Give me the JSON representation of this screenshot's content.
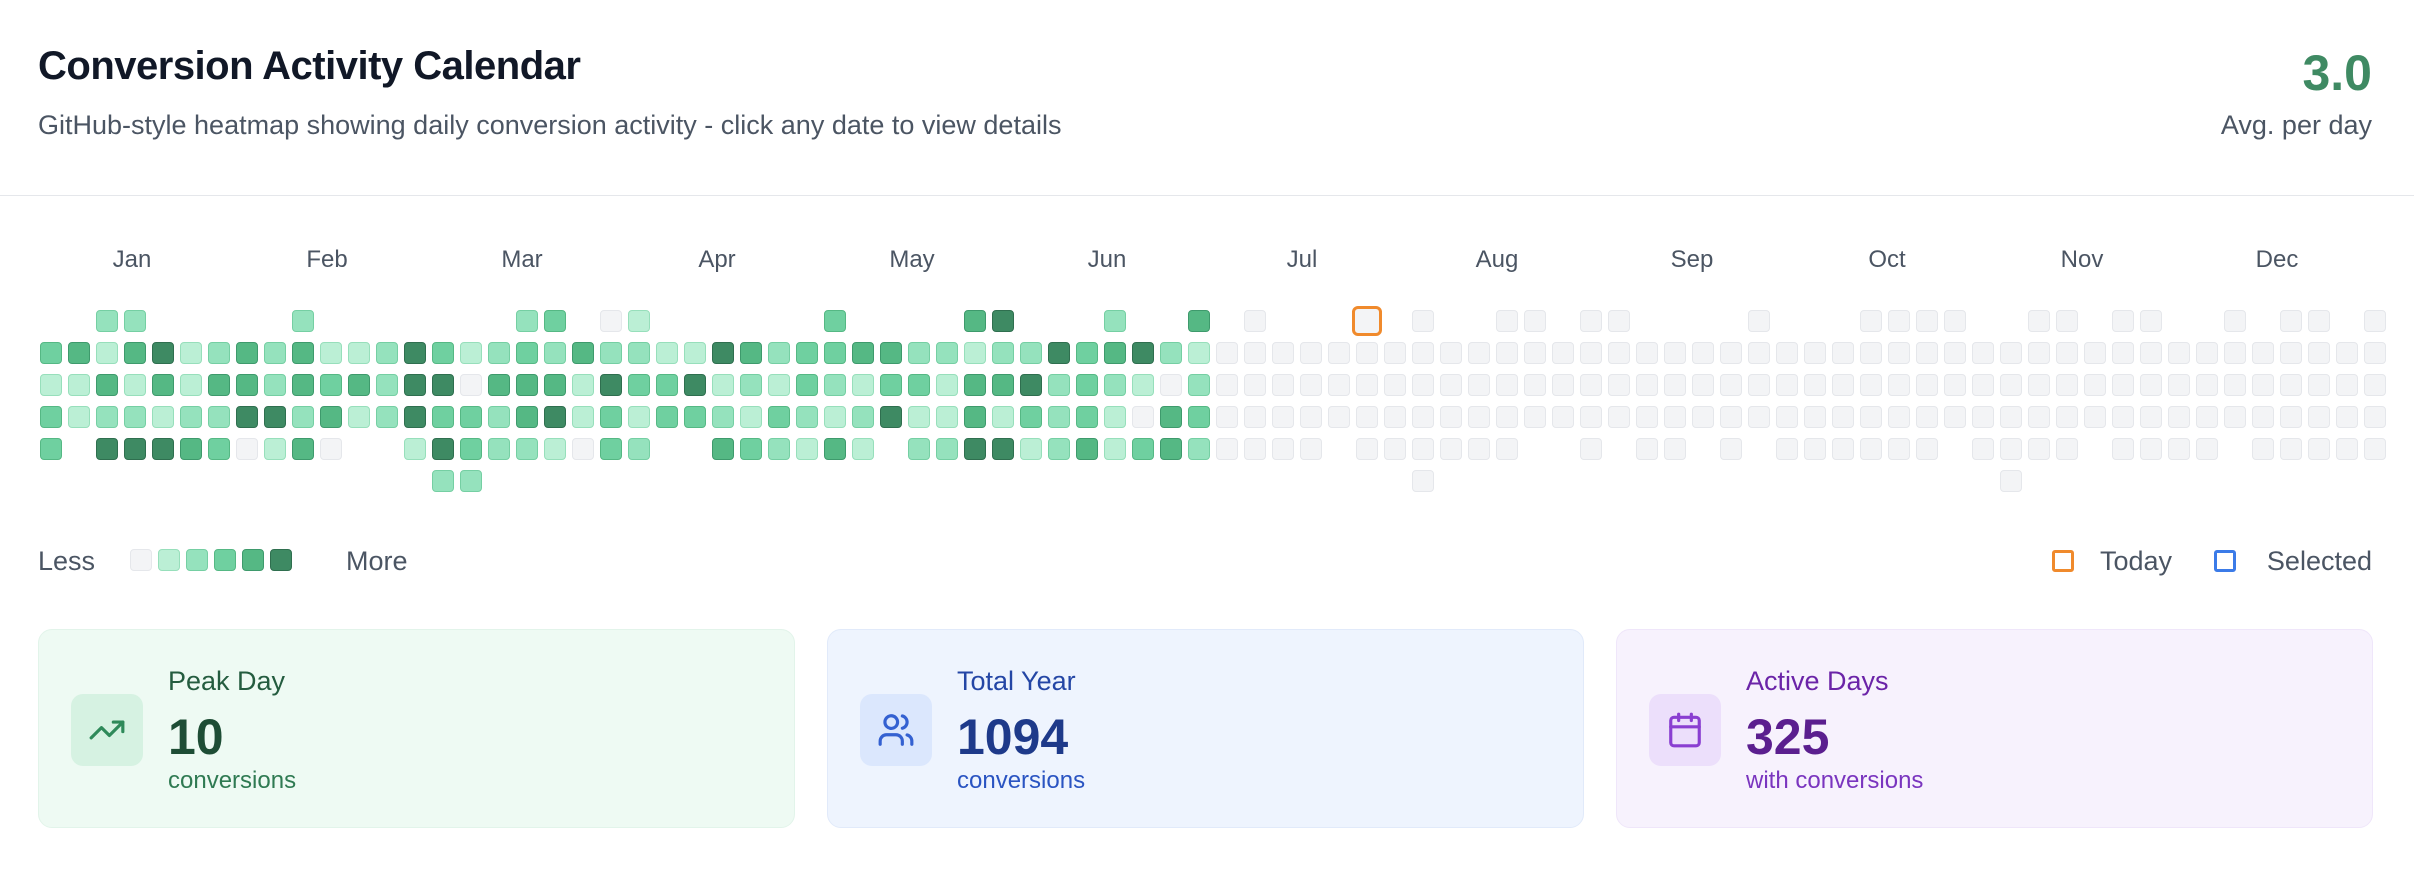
{
  "header": {
    "title": "Conversion Activity Calendar",
    "subtitle": "GitHub-style heatmap showing daily conversion activity - click any date to view details",
    "avg_value": "3.0",
    "avg_label": "Avg. per day"
  },
  "months": [
    "Jan",
    "Feb",
    "Mar",
    "Apr",
    "May",
    "Jun",
    "Jul",
    "Aug",
    "Sep",
    "Oct",
    "Nov",
    "Dec"
  ],
  "heat_colors": [
    "#f3f4f6",
    "#bbefd5",
    "#95e2bd",
    "#6fd0a0",
    "#55b884",
    "#3e8a63"
  ],
  "heat_borders": [
    "#e5e7eb",
    "#97dfbb",
    "#75cfa3",
    "#55b884",
    "#3e9a6c",
    "#2f6f4f"
  ],
  "legend": {
    "less": "Less",
    "more": "More",
    "today": "Today",
    "selected": "Selected",
    "today_color": "#f08a2c",
    "selected_color": "#3b7be8"
  },
  "cards": {
    "peak": {
      "label": "Peak Day",
      "value": "10",
      "sub": "conversions",
      "icon": "trending-up-icon"
    },
    "total": {
      "label": "Total Year",
      "value": "1094",
      "sub": "conversions",
      "icon": "users-icon"
    },
    "active": {
      "label": "Active Days",
      "value": "325",
      "sub": "with conversions",
      "icon": "calendar-icon"
    }
  }
}
